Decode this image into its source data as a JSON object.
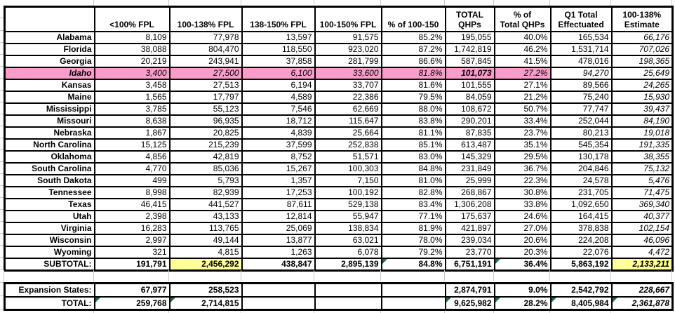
{
  "colors": {
    "highlight_pink": "#fb9dcb",
    "highlight_yellow": "#ffff99",
    "triangle_green": "#1d6f42",
    "gridline_gray": "#c9c9c9",
    "border_black": "#000000"
  },
  "table": {
    "columns": [
      "",
      "<100% FPL",
      "100-138% FPL",
      "138-150% FPL",
      "100-150% FPL",
      "% of 100-150",
      "TOTAL\nQHPs",
      "% of\nTotal QHPs",
      "Q1 Total\nEffectuated",
      "100-138%\nEstimate"
    ],
    "rows": [
      {
        "label": "Alabama",
        "values": [
          "8,109",
          "77,978",
          "13,597",
          "91,575",
          "85.2%",
          "195,055",
          "40.0%",
          "165,534",
          "66,176"
        ]
      },
      {
        "label": "Florida",
        "values": [
          "38,088",
          "804,470",
          "118,550",
          "923,020",
          "87.2%",
          "1,742,819",
          "46.2%",
          "1,531,714",
          "707,026"
        ]
      },
      {
        "label": "Georgia",
        "values": [
          "20,219",
          "243,941",
          "37,858",
          "281,799",
          "86.6%",
          "587,845",
          "41.5%",
          "478,016",
          "198,365"
        ]
      },
      {
        "label": "Idaho",
        "values": [
          "3,400",
          "27,500",
          "6,100",
          "33,600",
          "81.8%",
          "101,073",
          "27.2%",
          "94,270",
          "25,649"
        ],
        "highlight": {
          "color": "pink",
          "cells": [
            0,
            1,
            2,
            3,
            4,
            5,
            6
          ],
          "label": true
        },
        "bold_cells": [
          5
        ],
        "italic_row": true
      },
      {
        "label": "Kansas",
        "values": [
          "3,458",
          "27,513",
          "6,194",
          "33,707",
          "81.6%",
          "101,555",
          "27.1%",
          "89,566",
          "24,265"
        ]
      },
      {
        "label": "Maine",
        "values": [
          "1,565",
          "17,797",
          "4,589",
          "22,386",
          "79.5%",
          "84,059",
          "21.2%",
          "75,240",
          "15,930"
        ]
      },
      {
        "label": "Mississippi",
        "values": [
          "3,785",
          "55,123",
          "7,546",
          "62,669",
          "88.0%",
          "108,672",
          "50.7%",
          "77,747",
          "39,437"
        ]
      },
      {
        "label": "Missouri",
        "values": [
          "8,638",
          "96,935",
          "18,712",
          "115,647",
          "83.8%",
          "290,201",
          "33.4%",
          "252,044",
          "84,190"
        ]
      },
      {
        "label": "Nebraska",
        "values": [
          "1,867",
          "20,825",
          "4,839",
          "25,664",
          "81.1%",
          "87,835",
          "23.7%",
          "80,213",
          "19,018"
        ]
      },
      {
        "label": "North Carolina",
        "values": [
          "15,125",
          "215,239",
          "37,599",
          "252,838",
          "85.1%",
          "613,487",
          "35.1%",
          "545,354",
          "191,335"
        ]
      },
      {
        "label": "Oklahoma",
        "values": [
          "4,856",
          "42,819",
          "8,752",
          "51,571",
          "83.0%",
          "145,329",
          "29.5%",
          "130,178",
          "38,355"
        ]
      },
      {
        "label": "South Carolina",
        "values": [
          "4,770",
          "85,036",
          "15,267",
          "100,303",
          "84.8%",
          "231,849",
          "36.7%",
          "204,846",
          "75,132"
        ]
      },
      {
        "label": "South Dakota",
        "values": [
          "499",
          "5,793",
          "1,357",
          "7,150",
          "81.0%",
          "25,999",
          "22.3%",
          "24,578",
          "5,476"
        ]
      },
      {
        "label": "Tennessee",
        "values": [
          "8,998",
          "82,939",
          "17,253",
          "100,192",
          "82.8%",
          "268,867",
          "30.8%",
          "231,705",
          "71,475"
        ]
      },
      {
        "label": "Texas",
        "values": [
          "46,415",
          "441,527",
          "87,611",
          "529,138",
          "83.4%",
          "1,306,208",
          "33.8%",
          "1,092,650",
          "369,340"
        ]
      },
      {
        "label": "Utah",
        "values": [
          "2,398",
          "43,133",
          "12,814",
          "55,947",
          "77.1%",
          "175,637",
          "24.6%",
          "164,415",
          "40,377"
        ]
      },
      {
        "label": "Virginia",
        "values": [
          "16,283",
          "113,765",
          "25,069",
          "138,834",
          "81.9%",
          "421,897",
          "27.0%",
          "378,838",
          "102,154"
        ]
      },
      {
        "label": "Wisconsin",
        "values": [
          "2,997",
          "49,144",
          "13,877",
          "63,021",
          "78.0%",
          "239,034",
          "20.6%",
          "224,208",
          "46,096"
        ]
      },
      {
        "label": "Wyoming",
        "values": [
          "321",
          "4,815",
          "1,263",
          "6,078",
          "79.2%",
          "23,770",
          "20.3%",
          "22,076",
          "4,472"
        ]
      }
    ],
    "subtotal": {
      "label": "SUBTOTAL:",
      "values": [
        "191,791",
        "2,456,292",
        "438,847",
        "2,895,139",
        "84.8%",
        "6,751,191",
        "36.4%",
        "5,863,192",
        "2,133,211"
      ],
      "yellow_cells": [
        1,
        8
      ],
      "triangle_cells": [
        4,
        6
      ]
    },
    "expansion": {
      "label": "Expansion States:",
      "values": [
        "67,977",
        "258,523",
        "",
        "",
        "",
        "2,874,791",
        "9.0%",
        "2,542,792",
        "228,667"
      ],
      "triangle_cells": []
    },
    "total": {
      "label": "TOTAL:",
      "values": [
        "259,768",
        "2,714,815",
        "",
        "",
        "",
        "9,625,982",
        "28.2%",
        "8,405,984",
        "2,361,878"
      ],
      "triangle_cells": [
        0,
        1,
        5,
        6,
        7,
        8
      ]
    }
  }
}
